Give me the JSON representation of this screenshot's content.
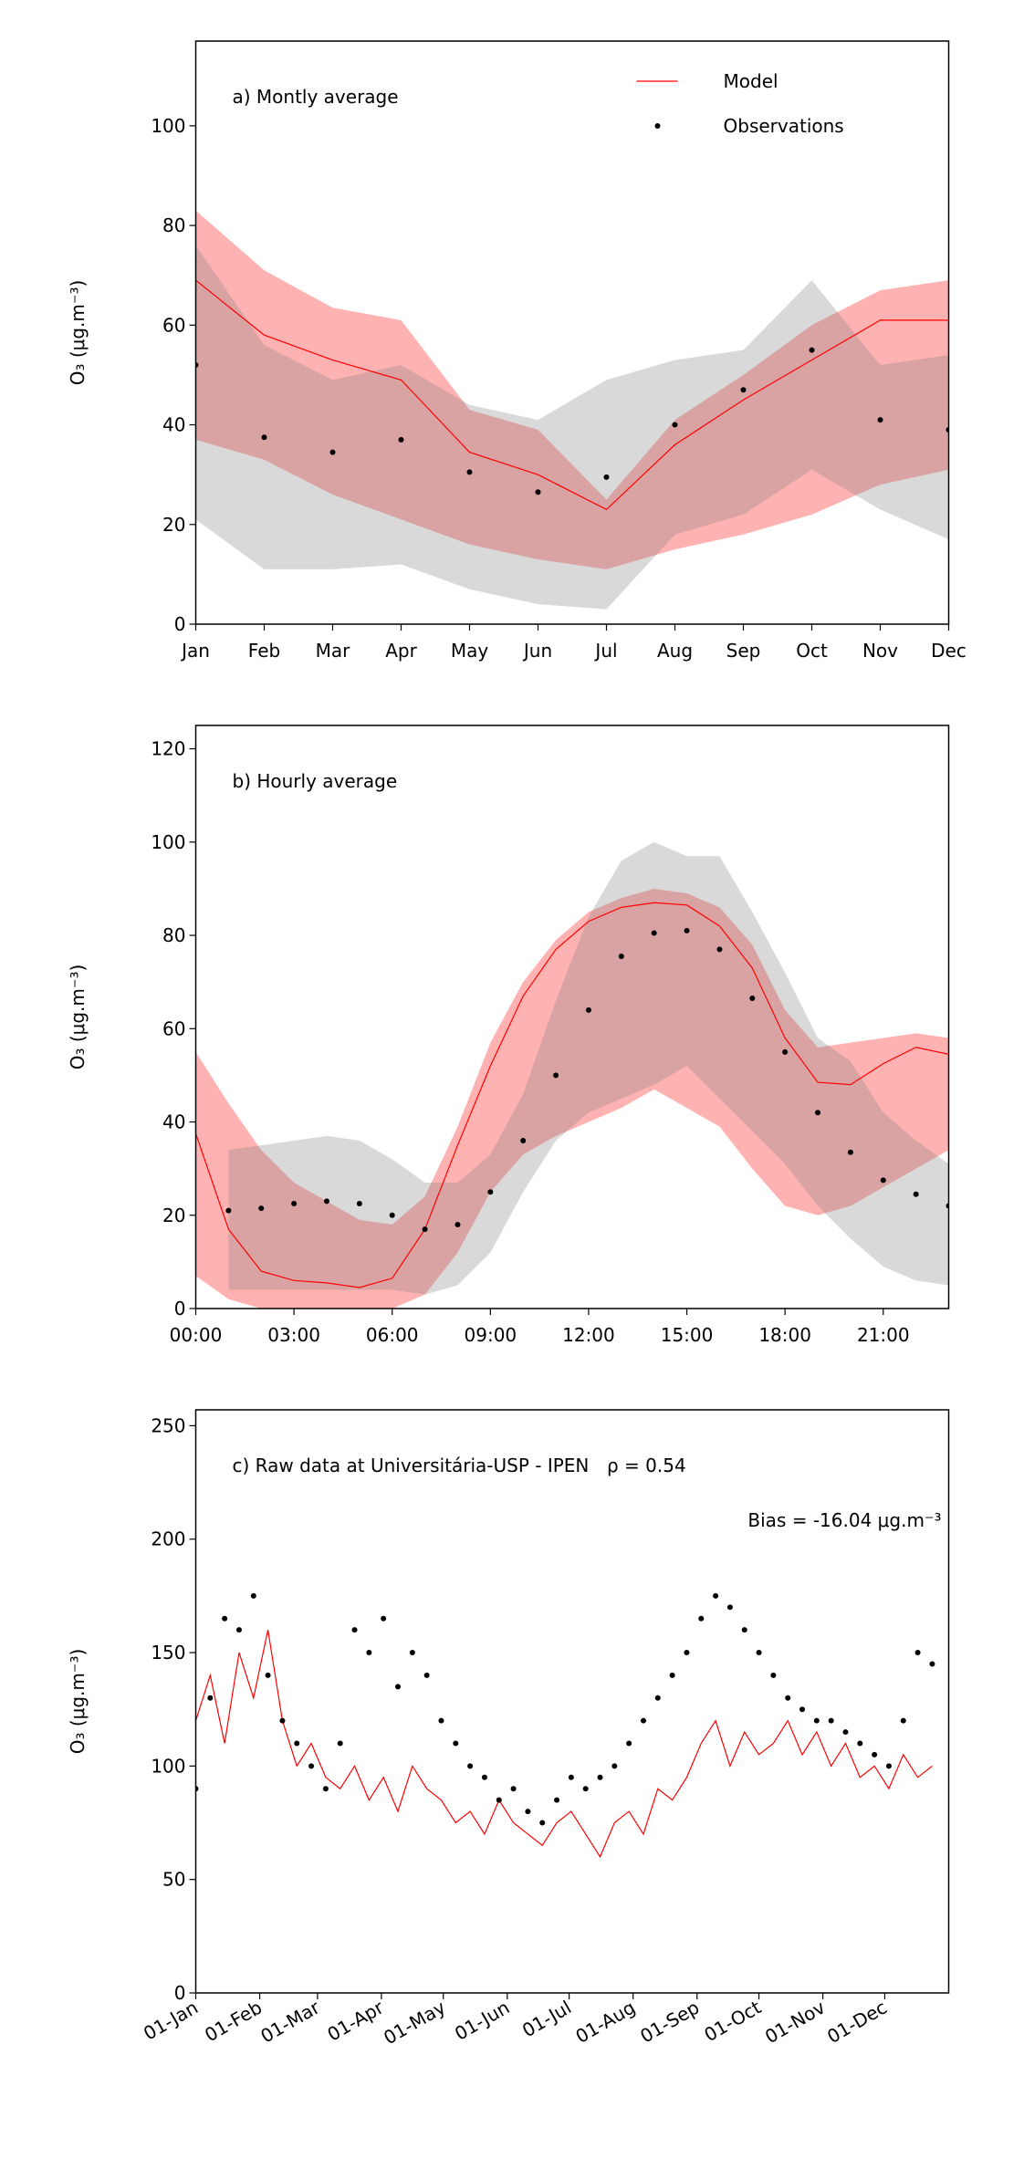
{
  "chart_data": [
    {
      "type": "line",
      "title": "a) Montly average",
      "ylabel": "O₃ (μg.m⁻³)",
      "categories": [
        "Jan",
        "Feb",
        "Mar",
        "Apr",
        "May",
        "Jun",
        "Jul",
        "Aug",
        "Sep",
        "Oct",
        "Nov",
        "Dec"
      ],
      "ylim": [
        0,
        117
      ],
      "yticks": [
        0,
        20,
        40,
        60,
        80,
        100
      ],
      "grid": false,
      "legend": "upper right",
      "bands": [
        {
          "color": "#ff0000",
          "opacity": 0.3,
          "upper": [
            83,
            71,
            63.5,
            61,
            43,
            39,
            25,
            41,
            50,
            60,
            67,
            69
          ],
          "lower": [
            37,
            33,
            26,
            21,
            16,
            13,
            11,
            15,
            18,
            22,
            28,
            31
          ]
        },
        {
          "color": "#808080",
          "opacity": 0.3,
          "upper": [
            76,
            56,
            49,
            52,
            44,
            41,
            49,
            53,
            55,
            69,
            52,
            54
          ],
          "lower": [
            21,
            11,
            11,
            12,
            7,
            4,
            3,
            18,
            22,
            31,
            23,
            17
          ]
        }
      ],
      "series": [
        {
          "name": "Model",
          "color": "#ff0000",
          "mode": "line",
          "values": [
            69,
            58,
            53,
            49,
            34.5,
            30,
            23,
            36,
            45,
            53,
            61,
            61
          ]
        },
        {
          "name": "Observations",
          "color": "#000000",
          "mode": "markers",
          "values": [
            52,
            37.5,
            34.5,
            37,
            30.5,
            26.5,
            29.5,
            40,
            47,
            55,
            41,
            39
          ]
        }
      ]
    },
    {
      "type": "line",
      "title": "b) Hourly average",
      "ylabel": "O₃ (μg.m⁻³)",
      "x": [
        0,
        1,
        2,
        3,
        4,
        5,
        6,
        7,
        8,
        9,
        10,
        11,
        12,
        13,
        14,
        15,
        16,
        17,
        18,
        19,
        20,
        21,
        22,
        23
      ],
      "xlim": [
        0,
        23
      ],
      "xticks": [
        {
          "value": 0,
          "label": "00:00"
        },
        {
          "value": 3,
          "label": "03:00"
        },
        {
          "value": 6,
          "label": "06:00"
        },
        {
          "value": 9,
          "label": "09:00"
        },
        {
          "value": 12,
          "label": "12:00"
        },
        {
          "value": 15,
          "label": "15:00"
        },
        {
          "value": 18,
          "label": "18:00"
        },
        {
          "value": 21,
          "label": "21:00"
        }
      ],
      "ylim": [
        0,
        125
      ],
      "yticks": [
        0,
        20,
        40,
        60,
        80,
        100,
        120
      ],
      "grid": false,
      "bands": [
        {
          "color": "#ff0000",
          "opacity": 0.3,
          "upper": [
            55,
            44,
            34,
            27,
            23,
            19,
            18,
            24,
            39,
            57,
            70,
            79,
            85,
            88,
            90,
            89,
            86,
            78,
            64,
            56,
            57,
            58,
            59,
            58
          ],
          "lower": [
            7,
            2,
            0,
            0,
            0,
            0,
            0,
            3,
            12,
            25,
            33,
            37,
            40,
            43,
            47,
            43,
            39,
            30,
            22,
            20,
            22,
            26,
            30,
            34
          ]
        },
        {
          "color": "#808080",
          "opacity": 0.3,
          "upper": [
            null,
            34,
            35,
            36,
            37,
            36,
            32,
            27,
            27,
            33,
            46,
            66,
            84,
            96,
            100,
            97,
            97,
            85,
            72,
            58,
            53,
            42,
            36,
            31
          ],
          "lower": [
            null,
            4,
            4,
            4,
            4,
            4,
            4,
            3,
            5,
            12,
            25,
            36,
            42,
            45,
            48,
            52,
            45,
            38,
            31,
            22,
            15,
            9,
            6,
            5
          ]
        }
      ],
      "series": [
        {
          "color": "#ff0000",
          "mode": "line",
          "values": [
            37.5,
            17,
            8,
            6,
            5.5,
            4.5,
            6.5,
            17,
            35,
            52,
            67,
            77,
            83,
            86,
            87,
            86.5,
            82,
            73,
            58,
            48.5,
            48,
            52.5,
            56,
            54.5
          ]
        },
        {
          "color": "#000000",
          "mode": "markers",
          "values": [
            null,
            21,
            21.5,
            22.5,
            23,
            22.5,
            20,
            17,
            18,
            25,
            36,
            50,
            64,
            75.5,
            80.5,
            81,
            77,
            66.5,
            55,
            42,
            33.5,
            27.5,
            24.5,
            22
          ]
        }
      ]
    },
    {
      "type": "line",
      "title": "c) Raw data at Universitária-USP - IPEN",
      "ylabel": "O₃ (μg.m⁻³)",
      "annotations": [
        "ρ = 0.54",
        "Bias = -16.04 μg.m⁻³"
      ],
      "x": [
        0,
        7,
        14,
        21,
        28,
        35,
        42,
        49,
        56,
        63,
        70,
        77,
        84,
        91,
        98,
        105,
        112,
        119,
        126,
        133,
        140,
        147,
        154,
        161,
        168,
        175,
        182,
        189,
        196,
        203,
        210,
        217,
        224,
        231,
        238,
        245,
        252,
        259,
        266,
        273,
        280,
        287,
        294,
        301,
        308,
        315,
        322,
        329,
        336,
        343,
        350,
        357
      ],
      "xlim": [
        0,
        365
      ],
      "xticks": [
        {
          "value": 0,
          "label": "01-Jan"
        },
        {
          "value": 31,
          "label": "01-Feb"
        },
        {
          "value": 59,
          "label": "01-Mar"
        },
        {
          "value": 90,
          "label": "01-Apr"
        },
        {
          "value": 120,
          "label": "01-May"
        },
        {
          "value": 151,
          "label": "01-Jun"
        },
        {
          "value": 181,
          "label": "01-Jul"
        },
        {
          "value": 212,
          "label": "01-Aug"
        },
        {
          "value": 243,
          "label": "01-Sep"
        },
        {
          "value": 273,
          "label": "01-Oct"
        },
        {
          "value": 304,
          "label": "01-Nov"
        },
        {
          "value": 334,
          "label": "01-Dec"
        }
      ],
      "ylim": [
        0,
        257
      ],
      "yticks": [
        0,
        50,
        100,
        150,
        200,
        250
      ],
      "grid": false,
      "series": [
        {
          "color": "#ff0000",
          "mode": "line",
          "values": [
            120,
            140,
            110,
            150,
            130,
            160,
            120,
            100,
            110,
            95,
            90,
            100,
            85,
            95,
            80,
            100,
            90,
            85,
            75,
            80,
            70,
            85,
            75,
            70,
            65,
            75,
            80,
            70,
            60,
            75,
            80,
            70,
            90,
            85,
            95,
            110,
            120,
            100,
            115,
            105,
            110,
            120,
            105,
            115,
            100,
            110,
            95,
            100,
            90,
            105,
            95,
            100
          ]
        },
        {
          "color": "#000000",
          "mode": "markers",
          "values": [
            90,
            130,
            165,
            160,
            175,
            140,
            120,
            110,
            100,
            90,
            110,
            160,
            150,
            165,
            135,
            150,
            140,
            120,
            110,
            100,
            95,
            85,
            90,
            80,
            75,
            85,
            95,
            90,
            95,
            100,
            110,
            120,
            130,
            140,
            150,
            165,
            175,
            170,
            160,
            150,
            140,
            130,
            125,
            120,
            120,
            115,
            110,
            105,
            100,
            120,
            150,
            145
          ]
        }
      ]
    }
  ]
}
